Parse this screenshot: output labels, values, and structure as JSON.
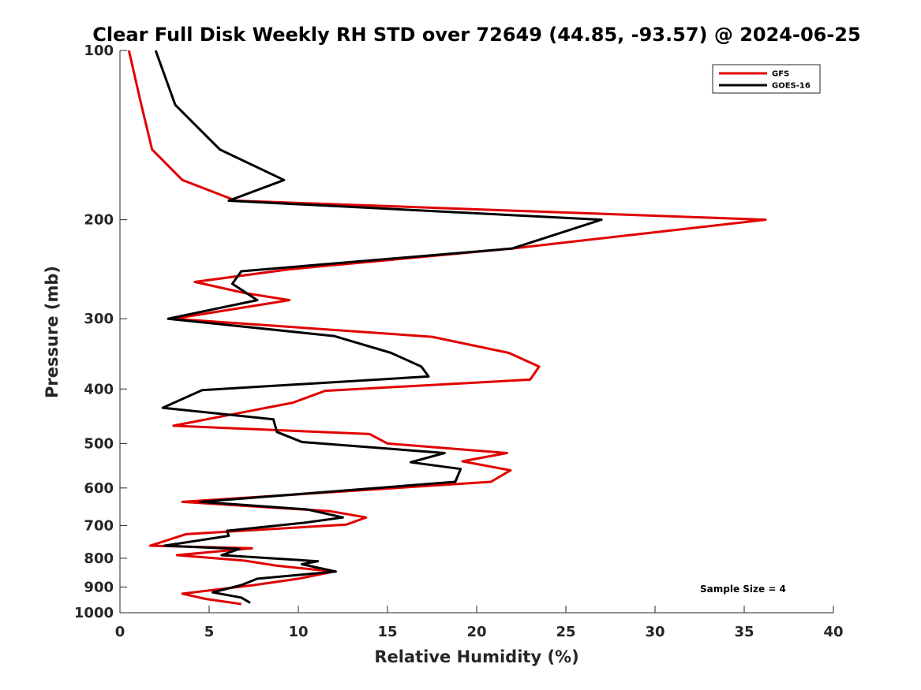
{
  "chart_data": {
    "type": "line",
    "title": "Clear Full Disk Weekly RH STD over 72649 (44.85, -93.57) @ 2024-06-25",
    "xlabel": "Relative Humidity (%)",
    "ylabel": "Pressure (mb)",
    "xlim": [
      0,
      40
    ],
    "ylim": [
      100,
      1000
    ],
    "y_scale": "log",
    "y_reversed": true,
    "x_ticks": [
      "0",
      "5",
      "10",
      "15",
      "20",
      "25",
      "30",
      "35",
      "40"
    ],
    "y_ticks": [
      "100",
      "200",
      "300",
      "400",
      "500",
      "600",
      "700",
      "800",
      "900",
      "1000"
    ],
    "grid": false,
    "legend_position": "top-right",
    "annotation": "Sample Size = 4",
    "series": [
      {
        "name": "GFS",
        "color": "#e00000",
        "points": [
          [
            0.5,
            100
          ],
          [
            1.2,
            125
          ],
          [
            1.8,
            150
          ],
          [
            3.5,
            170
          ],
          [
            6.5,
            185
          ],
          [
            36.2,
            200
          ],
          [
            22.0,
            225
          ],
          [
            9.5,
            245
          ],
          [
            4.2,
            258
          ],
          [
            7.0,
            270
          ],
          [
            9.5,
            278
          ],
          [
            3.0,
            300
          ],
          [
            17.5,
            323
          ],
          [
            21.8,
            345
          ],
          [
            23.5,
            365
          ],
          [
            23.0,
            385
          ],
          [
            11.5,
            403
          ],
          [
            9.7,
            423
          ],
          [
            3.0,
            465
          ],
          [
            14.0,
            481
          ],
          [
            15.0,
            500
          ],
          [
            21.7,
            520
          ],
          [
            19.2,
            538
          ],
          [
            21.9,
            558
          ],
          [
            20.8,
            585
          ],
          [
            3.5,
            635
          ],
          [
            11.8,
            660
          ],
          [
            13.8,
            677
          ],
          [
            12.7,
            697
          ],
          [
            3.7,
            725
          ],
          [
            1.7,
            760
          ],
          [
            7.4,
            768
          ],
          [
            3.2,
            790
          ],
          [
            7.0,
            808
          ],
          [
            8.8,
            825
          ],
          [
            12.0,
            845
          ],
          [
            10.0,
            870
          ],
          [
            7.5,
            893
          ],
          [
            3.5,
            925
          ],
          [
            4.8,
            945
          ],
          [
            6.8,
            965
          ]
        ]
      },
      {
        "name": "GOES-16",
        "color": "#000000",
        "points": [
          [
            2.0,
            100
          ],
          [
            3.1,
            125
          ],
          [
            5.6,
            150
          ],
          [
            9.2,
            170
          ],
          [
            6.1,
            185
          ],
          [
            27.0,
            200
          ],
          [
            22.0,
            225
          ],
          [
            6.8,
            247
          ],
          [
            6.3,
            260
          ],
          [
            7.7,
            278
          ],
          [
            2.7,
            300
          ],
          [
            12.0,
            322
          ],
          [
            15.2,
            345
          ],
          [
            16.9,
            365
          ],
          [
            17.3,
            380
          ],
          [
            4.6,
            402
          ],
          [
            2.4,
            432
          ],
          [
            8.6,
            453
          ],
          [
            8.8,
            477
          ],
          [
            10.2,
            497
          ],
          [
            18.2,
            520
          ],
          [
            16.3,
            540
          ],
          [
            19.1,
            555
          ],
          [
            18.8,
            585
          ],
          [
            4.5,
            635
          ],
          [
            10.5,
            655
          ],
          [
            12.5,
            677
          ],
          [
            10.3,
            692
          ],
          [
            6.0,
            715
          ],
          [
            6.1,
            730
          ],
          [
            2.5,
            760
          ],
          [
            6.7,
            770
          ],
          [
            5.7,
            790
          ],
          [
            11.1,
            810
          ],
          [
            10.2,
            820
          ],
          [
            12.1,
            845
          ],
          [
            7.7,
            870
          ],
          [
            6.8,
            893
          ],
          [
            5.2,
            920
          ],
          [
            6.8,
            940
          ],
          [
            7.3,
            960
          ]
        ]
      }
    ]
  }
}
